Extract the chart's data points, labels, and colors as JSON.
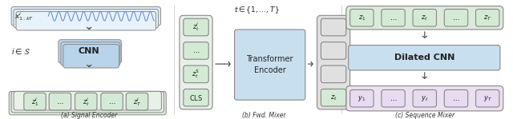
{
  "fig_width": 6.4,
  "fig_height": 1.49,
  "dpi": 100,
  "background": "#ffffff",
  "caption_a": "(a) Signal Encoder",
  "caption_b": "(b) Fwd. Mixer",
  "caption_c": "(c) Sequence Mixer",
  "gc": "#d4ead4",
  "pc": "#e8daf0",
  "gray_dark": "#c0c0c0",
  "gray_light": "#e0e0e0",
  "blue_cnn": "#c8dff0",
  "blue_transformer": "#c8dff0",
  "ec": "#888888",
  "ac": "#444444",
  "wave_color": "#5588cc"
}
